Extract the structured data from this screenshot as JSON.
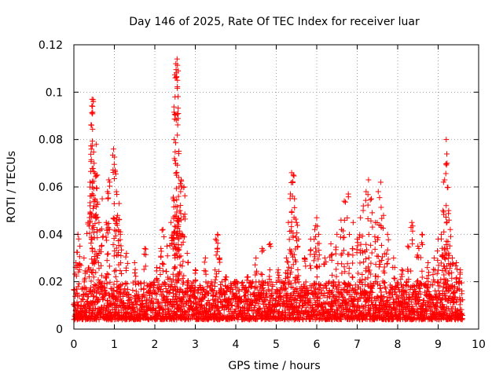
{
  "chart_data": {
    "type": "scatter",
    "title": "Day 146 of 2025, Rate Of TEC Index for receiver luar",
    "xlabel": "GPS time / hours",
    "ylabel": "ROTI / TECUs",
    "xlim": [
      0,
      10
    ],
    "ylim": [
      0,
      0.12
    ],
    "grid": true,
    "marker": "plus",
    "color": "#ff0000",
    "x_ticks": [
      "0",
      "1",
      "2",
      "3",
      "4",
      "5",
      "6",
      "7",
      "8",
      "9",
      "10"
    ],
    "y_ticks": [
      "0",
      "0.02",
      "0.04",
      "0.06",
      "0.08",
      "0.1",
      "0.12"
    ],
    "series": [
      {
        "name": "ROTI",
        "baseline": {
          "start": 0.0,
          "end": 9.6,
          "step": 0.01,
          "min": 0.004,
          "max": 0.02
        },
        "spikes": [
          {
            "x": 0.05,
            "y": 0.028
          },
          {
            "x": 0.1,
            "y": 0.04
          },
          {
            "x": 0.15,
            "y": 0.035
          },
          {
            "x": 0.25,
            "y": 0.03
          },
          {
            "x": 0.35,
            "y": 0.045
          },
          {
            "x": 0.4,
            "y": 0.062
          },
          {
            "x": 0.43,
            "y": 0.076
          },
          {
            "x": 0.45,
            "y": 0.097
          },
          {
            "x": 0.46,
            "y": 0.094
          },
          {
            "x": 0.48,
            "y": 0.096
          },
          {
            "x": 0.5,
            "y": 0.07
          },
          {
            "x": 0.52,
            "y": 0.055
          },
          {
            "x": 0.55,
            "y": 0.078
          },
          {
            "x": 0.58,
            "y": 0.065
          },
          {
            "x": 0.62,
            "y": 0.045
          },
          {
            "x": 0.7,
            "y": 0.055
          },
          {
            "x": 0.8,
            "y": 0.045
          },
          {
            "x": 0.83,
            "y": 0.058
          },
          {
            "x": 0.86,
            "y": 0.063
          },
          {
            "x": 0.98,
            "y": 0.076
          },
          {
            "x": 1.02,
            "y": 0.067
          },
          {
            "x": 1.05,
            "y": 0.058
          },
          {
            "x": 1.08,
            "y": 0.048
          },
          {
            "x": 1.12,
            "y": 0.053
          },
          {
            "x": 1.15,
            "y": 0.04
          },
          {
            "x": 1.3,
            "y": 0.032
          },
          {
            "x": 1.5,
            "y": 0.028
          },
          {
            "x": 1.75,
            "y": 0.034
          },
          {
            "x": 2.05,
            "y": 0.026
          },
          {
            "x": 2.15,
            "y": 0.034
          },
          {
            "x": 2.2,
            "y": 0.042
          },
          {
            "x": 2.3,
            "y": 0.035
          },
          {
            "x": 2.4,
            "y": 0.045
          },
          {
            "x": 2.45,
            "y": 0.055
          },
          {
            "x": 2.48,
            "y": 0.08
          },
          {
            "x": 2.5,
            "y": 0.098
          },
          {
            "x": 2.52,
            "y": 0.112
          },
          {
            "x": 2.55,
            "y": 0.114
          },
          {
            "x": 2.56,
            "y": 0.105
          },
          {
            "x": 2.58,
            "y": 0.091
          },
          {
            "x": 2.6,
            "y": 0.06
          },
          {
            "x": 2.62,
            "y": 0.05
          },
          {
            "x": 2.65,
            "y": 0.063
          },
          {
            "x": 2.68,
            "y": 0.04
          },
          {
            "x": 2.72,
            "y": 0.06
          },
          {
            "x": 2.8,
            "y": 0.032
          },
          {
            "x": 3.0,
            "y": 0.025
          },
          {
            "x": 3.25,
            "y": 0.03
          },
          {
            "x": 3.5,
            "y": 0.038
          },
          {
            "x": 3.55,
            "y": 0.04
          },
          {
            "x": 3.6,
            "y": 0.03
          },
          {
            "x": 3.75,
            "y": 0.022
          },
          {
            "x": 4.0,
            "y": 0.02
          },
          {
            "x": 4.3,
            "y": 0.022
          },
          {
            "x": 4.5,
            "y": 0.03
          },
          {
            "x": 4.65,
            "y": 0.034
          },
          {
            "x": 4.85,
            "y": 0.036
          },
          {
            "x": 5.05,
            "y": 0.025
          },
          {
            "x": 5.25,
            "y": 0.03
          },
          {
            "x": 5.3,
            "y": 0.045
          },
          {
            "x": 5.35,
            "y": 0.057
          },
          {
            "x": 5.38,
            "y": 0.066
          },
          {
            "x": 5.42,
            "y": 0.065
          },
          {
            "x": 5.45,
            "y": 0.055
          },
          {
            "x": 5.5,
            "y": 0.045
          },
          {
            "x": 5.55,
            "y": 0.038
          },
          {
            "x": 5.7,
            "y": 0.03
          },
          {
            "x": 5.85,
            "y": 0.038
          },
          {
            "x": 5.95,
            "y": 0.042
          },
          {
            "x": 6.0,
            "y": 0.047
          },
          {
            "x": 6.05,
            "y": 0.04
          },
          {
            "x": 6.2,
            "y": 0.03
          },
          {
            "x": 6.35,
            "y": 0.036
          },
          {
            "x": 6.5,
            "y": 0.04
          },
          {
            "x": 6.6,
            "y": 0.046
          },
          {
            "x": 6.68,
            "y": 0.054
          },
          {
            "x": 6.78,
            "y": 0.057
          },
          {
            "x": 6.9,
            "y": 0.045
          },
          {
            "x": 7.0,
            "y": 0.038
          },
          {
            "x": 7.08,
            "y": 0.047
          },
          {
            "x": 7.15,
            "y": 0.052
          },
          {
            "x": 7.22,
            "y": 0.058
          },
          {
            "x": 7.28,
            "y": 0.063
          },
          {
            "x": 7.35,
            "y": 0.055
          },
          {
            "x": 7.45,
            "y": 0.045
          },
          {
            "x": 7.52,
            "y": 0.058
          },
          {
            "x": 7.58,
            "y": 0.062
          },
          {
            "x": 7.65,
            "y": 0.048
          },
          {
            "x": 7.75,
            "y": 0.04
          },
          {
            "x": 7.9,
            "y": 0.03
          },
          {
            "x": 8.1,
            "y": 0.025
          },
          {
            "x": 8.25,
            "y": 0.035
          },
          {
            "x": 8.35,
            "y": 0.045
          },
          {
            "x": 8.5,
            "y": 0.035
          },
          {
            "x": 8.6,
            "y": 0.04
          },
          {
            "x": 8.75,
            "y": 0.028
          },
          {
            "x": 8.9,
            "y": 0.03
          },
          {
            "x": 9.0,
            "y": 0.038
          },
          {
            "x": 9.08,
            "y": 0.04
          },
          {
            "x": 9.12,
            "y": 0.05
          },
          {
            "x": 9.16,
            "y": 0.063
          },
          {
            "x": 9.2,
            "y": 0.08
          },
          {
            "x": 9.22,
            "y": 0.07
          },
          {
            "x": 9.26,
            "y": 0.05
          },
          {
            "x": 9.3,
            "y": 0.042
          },
          {
            "x": 9.35,
            "y": 0.03
          },
          {
            "x": 9.45,
            "y": 0.028
          },
          {
            "x": 9.55,
            "y": 0.025
          }
        ]
      }
    ]
  }
}
